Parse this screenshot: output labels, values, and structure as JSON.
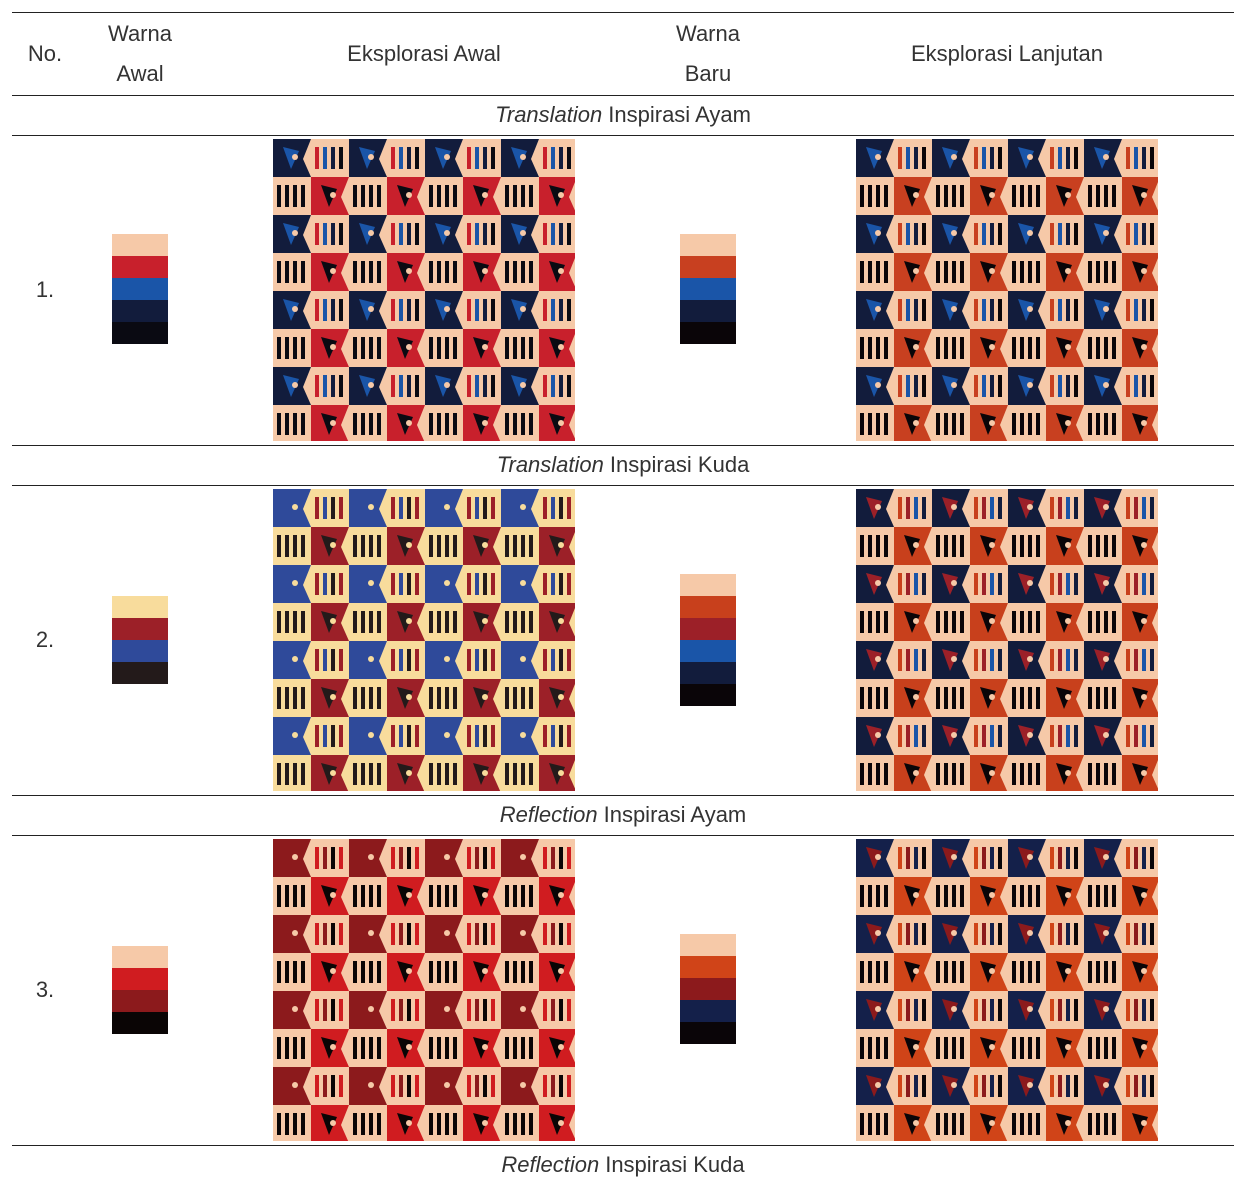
{
  "table": {
    "headers": [
      "No.",
      "Warna Awal",
      "Eksplorasi Awal",
      "Warna Baru",
      "Eksplorasi Lanjutan"
    ],
    "rows": [
      {
        "section": {
          "style": "Translation",
          "text": "Inspirasi Ayam"
        },
        "no": "1.",
        "palette_awal": [
          "#f6c9a8",
          "#c8202c",
          "#1a55a8",
          "#121c3c",
          "#0a0a12"
        ],
        "palette_baru": [
          "#f6c9a8",
          "#c84020",
          "#1a55a8",
          "#121c3c",
          "#0a0508"
        ]
      },
      {
        "section": {
          "style": "Translation",
          "text": "Inspirasi Kuda"
        },
        "no": "2.",
        "palette_awal": [
          "#f8dc9c",
          "#9c2028",
          "#2f4a9a",
          "#231a1a"
        ],
        "palette_baru": [
          "#f6c9a8",
          "#c8401c",
          "#9c2028",
          "#1a55a8",
          "#121c3c",
          "#0a0508"
        ]
      },
      {
        "section": {
          "style": "Reflection",
          "text": "Inspirasi Ayam"
        },
        "no": "3.",
        "palette_awal": [
          "#f6c9a8",
          "#d01c20",
          "#8c1a1c",
          "#0a0505"
        ],
        "palette_baru": [
          "#f6c9a8",
          "#d04418",
          "#8c1a1c",
          "#14204a",
          "#0a0508"
        ]
      }
    ],
    "final_section": {
      "style": "Reflection",
      "text": "Inspirasi Kuda"
    }
  }
}
